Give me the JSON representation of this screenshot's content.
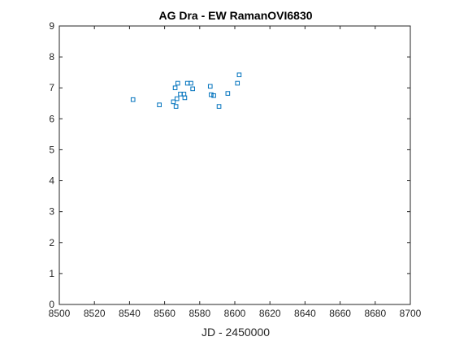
{
  "chart_data": {
    "type": "scatter",
    "title": "AG Dra - EW RamanOVI6830",
    "xlabel": "JD - 2450000",
    "ylabel": "",
    "xlim": [
      8500,
      8700
    ],
    "ylim": [
      0,
      9
    ],
    "xticks": [
      8500,
      8520,
      8540,
      8560,
      8580,
      8600,
      8620,
      8640,
      8660,
      8680,
      8700
    ],
    "yticks": [
      0,
      1,
      2,
      3,
      4,
      5,
      6,
      7,
      8,
      9
    ],
    "grid": false,
    "marker": "square",
    "marker_color": "#0072BD",
    "series": [
      {
        "x": [
          8542,
          8557,
          8565,
          8566,
          8566.5,
          8567,
          8567.5,
          8569,
          8571,
          8571.5,
          8573,
          8575,
          8576,
          8586,
          8586.5,
          8588,
          8591,
          8596,
          8601.5,
          8602.5
        ],
        "y": [
          6.62,
          6.45,
          6.55,
          7.0,
          6.4,
          6.65,
          7.15,
          6.8,
          6.8,
          6.68,
          7.15,
          7.15,
          6.97,
          7.05,
          6.78,
          6.75,
          6.4,
          6.82,
          7.15,
          7.42
        ]
      }
    ]
  }
}
